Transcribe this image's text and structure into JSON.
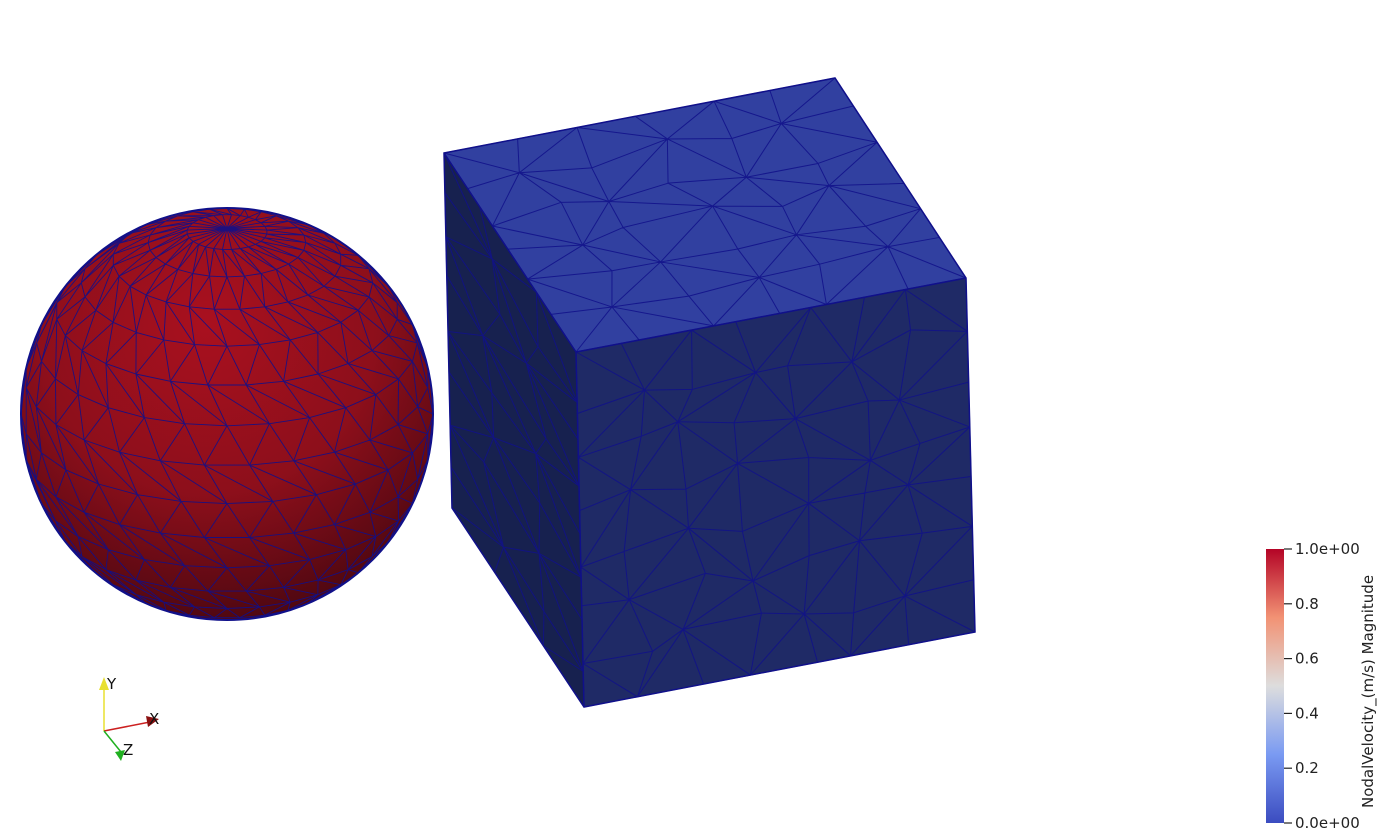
{
  "colorbar": {
    "title": "NodalVelocity_(m/s) Magnitude",
    "range": [
      0.0,
      1.0
    ],
    "ticks": [
      {
        "value": 1.0,
        "label": "1.0e+00"
      },
      {
        "value": 0.8,
        "label": "0.8"
      },
      {
        "value": 0.6,
        "label": "0.6"
      },
      {
        "value": 0.4,
        "label": "0.4"
      },
      {
        "value": 0.2,
        "label": "0.2"
      },
      {
        "value": 0.0,
        "label": "0.0e+00"
      }
    ],
    "colors": {
      "low": "#3b4cc0",
      "mid": "#dddddd",
      "high": "#b40426"
    }
  },
  "orientation_axes": {
    "x": {
      "label": "X",
      "color": "#cc2020"
    },
    "y": {
      "label": "Y",
      "color": "#e8e030"
    },
    "z": {
      "label": "Z",
      "color": "#20b020"
    }
  },
  "objects": [
    {
      "name": "sphere",
      "value": 1.0,
      "color": "#a1101f"
    },
    {
      "name": "cube",
      "value": 0.0,
      "color": "#2a3da0"
    }
  ],
  "mesh_edge_color": "#10108a"
}
